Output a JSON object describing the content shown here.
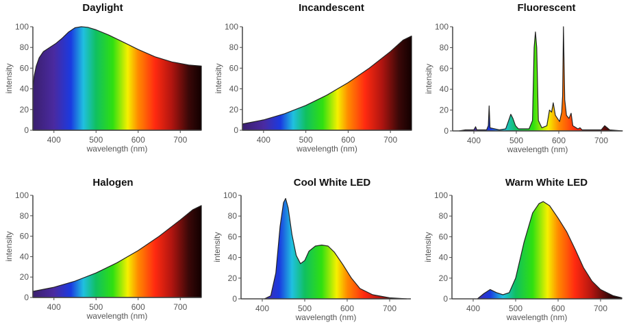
{
  "chart_data": [
    {
      "type": "area",
      "title": "Daylight",
      "xlabel": "wavelength (nm)",
      "ylabel": "intensity",
      "xlim": [
        350,
        750
      ],
      "ylim": [
        0,
        100
      ],
      "xticks": [
        400,
        500,
        600,
        700
      ],
      "yticks": [
        0,
        20,
        40,
        60,
        80,
        100
      ],
      "grid": false,
      "fill": "visible-spectrum gradient",
      "points": [
        [
          350,
          40
        ],
        [
          353,
          52
        ],
        [
          358,
          62
        ],
        [
          365,
          70
        ],
        [
          375,
          76
        ],
        [
          390,
          80
        ],
        [
          405,
          84
        ],
        [
          420,
          89
        ],
        [
          435,
          95
        ],
        [
          450,
          99
        ],
        [
          465,
          100
        ],
        [
          480,
          99.5
        ],
        [
          500,
          97
        ],
        [
          530,
          92
        ],
        [
          560,
          86
        ],
        [
          600,
          78
        ],
        [
          640,
          71
        ],
        [
          680,
          66
        ],
        [
          720,
          63
        ],
        [
          750,
          62
        ]
      ]
    },
    {
      "type": "area",
      "title": "Incandescent",
      "xlabel": "wavelength (nm)",
      "ylabel": "intensity",
      "xlim": [
        350,
        750
      ],
      "ylim": [
        0,
        100
      ],
      "xticks": [
        400,
        500,
        600,
        700
      ],
      "yticks": [
        0,
        20,
        40,
        60,
        80,
        100
      ],
      "grid": false,
      "fill": "visible-spectrum gradient",
      "points": [
        [
          350,
          6
        ],
        [
          400,
          10
        ],
        [
          450,
          16
        ],
        [
          500,
          24
        ],
        [
          550,
          34
        ],
        [
          600,
          46
        ],
        [
          650,
          60
        ],
        [
          700,
          76
        ],
        [
          730,
          87
        ],
        [
          750,
          91
        ]
      ]
    },
    {
      "type": "area",
      "title": "Fluorescent",
      "xlabel": "wavelength (nm)",
      "ylabel": "intensity",
      "xlim": [
        350,
        750
      ],
      "ylim": [
        0,
        100
      ],
      "xticks": [
        400,
        500,
        600,
        700
      ],
      "yticks": [
        0,
        20,
        40,
        60,
        80,
        100
      ],
      "grid": false,
      "fill": "visible-spectrum gradient",
      "points": [
        [
          365,
          0
        ],
        [
          380,
          1
        ],
        [
          400,
          1
        ],
        [
          404,
          4
        ],
        [
          407,
          1
        ],
        [
          430,
          1
        ],
        [
          434,
          5
        ],
        [
          436,
          24
        ],
        [
          438,
          3
        ],
        [
          460,
          1
        ],
        [
          475,
          2
        ],
        [
          482,
          10
        ],
        [
          487,
          16
        ],
        [
          492,
          12
        ],
        [
          498,
          5
        ],
        [
          505,
          2
        ],
        [
          530,
          2
        ],
        [
          538,
          10
        ],
        [
          542,
          80
        ],
        [
          545,
          95
        ],
        [
          548,
          80
        ],
        [
          552,
          10
        ],
        [
          560,
          3
        ],
        [
          572,
          5
        ],
        [
          578,
          20
        ],
        [
          583,
          18
        ],
        [
          587,
          27
        ],
        [
          592,
          15
        ],
        [
          597,
          12
        ],
        [
          602,
          9
        ],
        [
          607,
          18
        ],
        [
          609,
          34
        ],
        [
          611,
          100
        ],
        [
          614,
          30
        ],
        [
          618,
          15
        ],
        [
          624,
          12
        ],
        [
          629,
          17
        ],
        [
          633,
          5
        ],
        [
          645,
          2
        ],
        [
          650,
          3
        ],
        [
          655,
          1
        ],
        [
          700,
          1
        ],
        [
          708,
          5
        ],
        [
          714,
          3
        ],
        [
          720,
          1
        ],
        [
          750,
          0
        ]
      ]
    },
    {
      "type": "area",
      "title": "Halogen",
      "xlabel": "wavelength (nm)",
      "ylabel": "intensity",
      "xlim": [
        350,
        750
      ],
      "ylim": [
        0,
        100
      ],
      "xticks": [
        400,
        500,
        600,
        700
      ],
      "yticks": [
        0,
        20,
        40,
        60,
        80,
        100
      ],
      "grid": false,
      "fill": "visible-spectrum gradient",
      "points": [
        [
          350,
          6
        ],
        [
          400,
          10
        ],
        [
          450,
          16
        ],
        [
          500,
          24
        ],
        [
          550,
          34
        ],
        [
          600,
          46
        ],
        [
          650,
          60
        ],
        [
          700,
          76
        ],
        [
          730,
          86
        ],
        [
          750,
          90
        ]
      ]
    },
    {
      "type": "area",
      "title": "Cool White LED",
      "xlabel": "wavelength (nm)",
      "ylabel": "intensity",
      "xlim": [
        350,
        750
      ],
      "ylim": [
        0,
        100
      ],
      "xticks": [
        400,
        500,
        600,
        700
      ],
      "yticks": [
        0,
        20,
        40,
        60,
        80,
        100
      ],
      "grid": false,
      "fill": "visible-spectrum gradient",
      "points": [
        [
          405,
          0
        ],
        [
          420,
          3
        ],
        [
          432,
          25
        ],
        [
          442,
          70
        ],
        [
          450,
          93
        ],
        [
          455,
          97
        ],
        [
          461,
          88
        ],
        [
          470,
          62
        ],
        [
          480,
          42
        ],
        [
          490,
          34
        ],
        [
          500,
          37
        ],
        [
          510,
          46
        ],
        [
          525,
          51
        ],
        [
          540,
          52
        ],
        [
          555,
          51
        ],
        [
          570,
          45
        ],
        [
          590,
          33
        ],
        [
          610,
          20
        ],
        [
          630,
          10
        ],
        [
          660,
          4
        ],
        [
          700,
          1
        ],
        [
          740,
          0
        ]
      ]
    },
    {
      "type": "area",
      "title": "Warm White LED",
      "xlabel": "wavelength (nm)",
      "ylabel": "intensity",
      "xlim": [
        350,
        750
      ],
      "ylim": [
        0,
        100
      ],
      "xticks": [
        400,
        500,
        600,
        700
      ],
      "yticks": [
        0,
        20,
        40,
        60,
        80,
        100
      ],
      "grid": false,
      "fill": "visible-spectrum gradient",
      "points": [
        [
          410,
          0
        ],
        [
          425,
          5
        ],
        [
          440,
          9
        ],
        [
          455,
          6
        ],
        [
          470,
          4
        ],
        [
          485,
          6
        ],
        [
          500,
          20
        ],
        [
          520,
          55
        ],
        [
          540,
          83
        ],
        [
          555,
          92
        ],
        [
          565,
          94
        ],
        [
          580,
          90
        ],
        [
          600,
          78
        ],
        [
          620,
          65
        ],
        [
          640,
          48
        ],
        [
          660,
          30
        ],
        [
          680,
          17
        ],
        [
          700,
          9
        ],
        [
          730,
          3
        ],
        [
          750,
          1
        ]
      ]
    }
  ]
}
